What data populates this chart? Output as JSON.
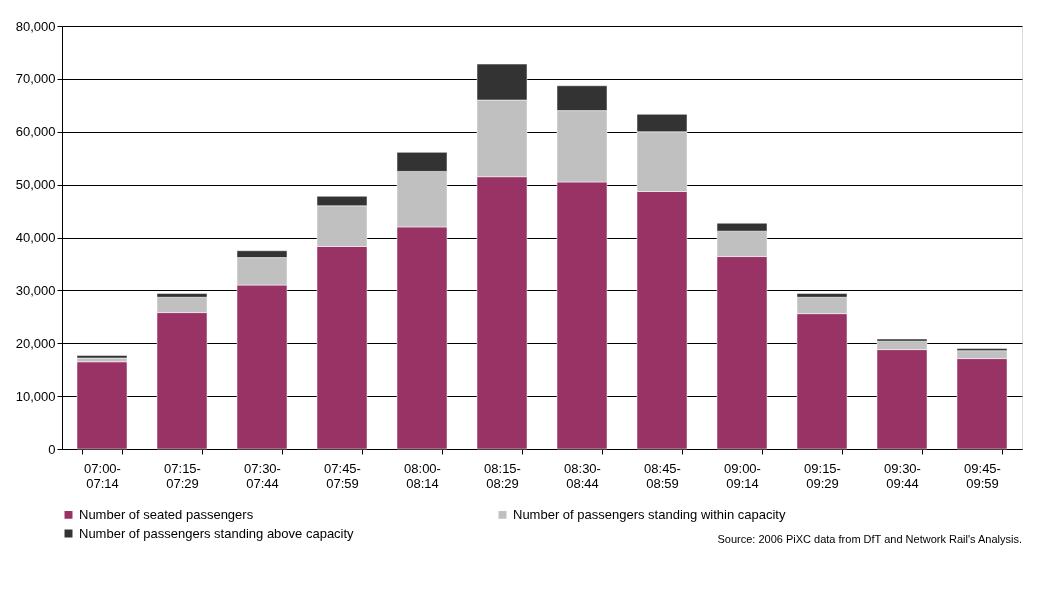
{
  "chart_data": {
    "type": "bar",
    "stacked": true,
    "categories": [
      "07:00-07:14",
      "07:15-07:29",
      "07:30-07:44",
      "07:45-07:59",
      "08:00-08:14",
      "08:15-08:29",
      "08:30-08:44",
      "08:45-08:59",
      "09:00-09:14",
      "09:15-09:29",
      "09:30-09:44",
      "09:45-09:59"
    ],
    "series": [
      {
        "name": "Number of seated passengers",
        "color": "#993366",
        "values": [
          16500,
          25800,
          31000,
          38300,
          42000,
          51500,
          50500,
          48700,
          36400,
          25600,
          18800,
          17100
        ]
      },
      {
        "name": "Number of passengers standing within capacity",
        "color": "#c0c0c0",
        "values": [
          700,
          2900,
          5200,
          7700,
          10500,
          14500,
          13500,
          11300,
          4800,
          3100,
          1600,
          1500
        ]
      },
      {
        "name": "Number of passengers standing above capacity",
        "color": "#333333",
        "values": [
          500,
          700,
          1300,
          1800,
          3600,
          6800,
          4700,
          3300,
          1500,
          700,
          400,
          400
        ]
      }
    ],
    "ylim": [
      0,
      80000
    ],
    "yticks": [
      {
        "value": 0,
        "label": "0"
      },
      {
        "value": 10000,
        "label": "10,000"
      },
      {
        "value": 20000,
        "label": "20,000"
      },
      {
        "value": 30000,
        "label": "30,000"
      },
      {
        "value": 40000,
        "label": "40,000"
      },
      {
        "value": 50000,
        "label": "50,000"
      },
      {
        "value": 60000,
        "label": "60,000"
      },
      {
        "value": 70000,
        "label": "70,000"
      },
      {
        "value": 80000,
        "label": "80,000"
      }
    ],
    "grid": "y",
    "legend": "bottom",
    "annotations": [
      "Source: 2006 PiXC data from DfT and Network Rail's Analysis."
    ]
  }
}
